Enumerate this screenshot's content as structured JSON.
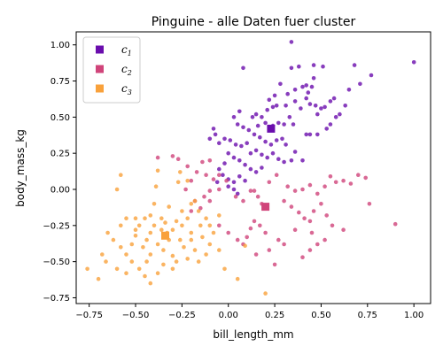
{
  "chart_data": {
    "type": "scatter",
    "title": "Pinguine - alle Daten fuer cluster",
    "xlabel": "bill_length_mm",
    "ylabel": "body_mass_kg",
    "xlim": [
      -0.82,
      1.09
    ],
    "ylim": [
      -0.79,
      1.09
    ],
    "xticks": [
      -0.75,
      -0.5,
      -0.25,
      0.0,
      0.25,
      0.5,
      0.75,
      1.0
    ],
    "xtick_labels": [
      "−0.75",
      "−0.50",
      "−0.25",
      "0.00",
      "0.25",
      "0.50",
      "0.75",
      "1.00"
    ],
    "yticks": [
      -0.75,
      -0.5,
      -0.25,
      0.0,
      0.25,
      0.5,
      0.75,
      1.0
    ],
    "ytick_labels": [
      "−0.75",
      "−0.50",
      "−0.25",
      "0.00",
      "0.25",
      "0.50",
      "0.75",
      "1.00"
    ],
    "grid": false,
    "legend_position": "top-left",
    "series": [
      {
        "name": "c",
        "subscript": "1",
        "color": "#6a0dad",
        "centroid": [
          0.23,
          0.42
        ],
        "points": [
          [
            0.08,
            0.84
          ],
          [
            0.34,
            1.02
          ],
          [
            0.38,
            0.85
          ],
          [
            0.34,
            0.84
          ],
          [
            0.46,
            0.86
          ],
          [
            0.51,
            0.85
          ],
          [
            0.68,
            0.86
          ],
          [
            1.0,
            0.88
          ],
          [
            0.71,
            0.73
          ],
          [
            0.77,
            0.79
          ],
          [
            0.65,
            0.69
          ],
          [
            0.4,
            0.71
          ],
          [
            0.42,
            0.72
          ],
          [
            0.45,
            0.71
          ],
          [
            0.46,
            0.77
          ],
          [
            0.43,
            0.67
          ],
          [
            0.36,
            0.69
          ],
          [
            0.28,
            0.73
          ],
          [
            0.32,
            0.66
          ],
          [
            0.31,
            0.58
          ],
          [
            0.36,
            0.61
          ],
          [
            0.39,
            0.56
          ],
          [
            0.42,
            0.63
          ],
          [
            0.44,
            0.59
          ],
          [
            0.47,
            0.58
          ],
          [
            0.48,
            0.52
          ],
          [
            0.5,
            0.56
          ],
          [
            0.52,
            0.57
          ],
          [
            0.55,
            0.61
          ],
          [
            0.57,
            0.63
          ],
          [
            0.26,
            0.58
          ],
          [
            0.24,
            0.57
          ],
          [
            0.21,
            0.55
          ],
          [
            0.18,
            0.5
          ],
          [
            0.15,
            0.52
          ],
          [
            0.13,
            0.5
          ],
          [
            0.33,
            0.5
          ],
          [
            0.35,
            0.45
          ],
          [
            0.3,
            0.45
          ],
          [
            0.27,
            0.46
          ],
          [
            0.24,
            0.44
          ],
          [
            0.2,
            0.46
          ],
          [
            0.06,
            0.54
          ],
          [
            0.03,
            0.5
          ],
          [
            0.05,
            0.45
          ],
          [
            0.08,
            0.43
          ],
          [
            0.11,
            0.41
          ],
          [
            0.14,
            0.38
          ],
          [
            0.17,
            0.36
          ],
          [
            0.2,
            0.33
          ],
          [
            0.23,
            0.31
          ],
          [
            0.26,
            0.34
          ],
          [
            0.29,
            0.35
          ],
          [
            0.31,
            0.31
          ],
          [
            0.1,
            0.32
          ],
          [
            0.07,
            0.3
          ],
          [
            0.04,
            0.31
          ],
          [
            0.01,
            0.34
          ],
          [
            -0.02,
            0.35
          ],
          [
            -0.05,
            0.32
          ],
          [
            -0.07,
            0.38
          ],
          [
            -0.1,
            0.35
          ],
          [
            -0.08,
            0.42
          ],
          [
            0.12,
            0.25
          ],
          [
            0.15,
            0.27
          ],
          [
            0.18,
            0.24
          ],
          [
            0.21,
            0.22
          ],
          [
            0.24,
            0.25
          ],
          [
            0.27,
            0.21
          ],
          [
            0.3,
            0.19
          ],
          [
            0.34,
            0.2
          ],
          [
            0.4,
            0.2
          ],
          [
            0.42,
            0.38
          ],
          [
            0.44,
            0.38
          ],
          [
            0.36,
            0.26
          ],
          [
            0.0,
            0.25
          ],
          [
            0.03,
            0.22
          ],
          [
            0.06,
            0.2
          ],
          [
            0.09,
            0.17
          ],
          [
            0.12,
            0.14
          ],
          [
            0.15,
            0.12
          ],
          [
            0.18,
            0.15
          ],
          [
            -0.02,
            0.18
          ],
          [
            -0.05,
            0.14
          ],
          [
            -0.03,
            0.1
          ],
          [
            0.0,
            0.07
          ],
          [
            0.03,
            0.05
          ],
          [
            0.06,
            0.09
          ],
          [
            0.09,
            0.06
          ],
          [
            -0.06,
            0.05
          ],
          [
            0.0,
            0.02
          ],
          [
            0.03,
            0.0
          ],
          [
            0.05,
            -0.03
          ],
          [
            0.48,
            0.38
          ],
          [
            0.53,
            0.42
          ],
          [
            0.55,
            0.45
          ],
          [
            0.58,
            0.5
          ],
          [
            0.6,
            0.52
          ],
          [
            0.63,
            0.58
          ],
          [
            0.22,
            0.62
          ],
          [
            0.25,
            0.65
          ],
          [
            0.16,
            0.44
          ]
        ]
      },
      {
        "name": "c",
        "subscript": "2",
        "color": "#d0447a",
        "centroid": [
          0.2,
          -0.12
        ],
        "points": [
          [
            -0.38,
            0.22
          ],
          [
            -0.3,
            0.23
          ],
          [
            -0.27,
            0.21
          ],
          [
            -0.22,
            0.16
          ],
          [
            -0.14,
            0.19
          ],
          [
            -0.1,
            0.2
          ],
          [
            -0.17,
            0.12
          ],
          [
            -0.12,
            0.1
          ],
          [
            -0.08,
            0.07
          ],
          [
            -0.05,
            0.1
          ],
          [
            -0.01,
            0.06
          ],
          [
            -0.05,
            0.0
          ],
          [
            -0.2,
            0.06
          ],
          [
            -0.23,
            0.0
          ],
          [
            -0.1,
            -0.01
          ],
          [
            -0.13,
            -0.05
          ],
          [
            -0.18,
            -0.08
          ],
          [
            -0.1,
            -0.08
          ],
          [
            -0.15,
            -0.13
          ],
          [
            -0.2,
            -0.15
          ],
          [
            0.04,
            -0.05
          ],
          [
            0.08,
            -0.08
          ],
          [
            0.12,
            -0.01
          ],
          [
            0.14,
            -0.01
          ],
          [
            0.16,
            -0.05
          ],
          [
            0.18,
            -0.1
          ],
          [
            0.22,
            0.05
          ],
          [
            0.26,
            0.1
          ],
          [
            0.32,
            0.02
          ],
          [
            0.36,
            -0.01
          ],
          [
            0.4,
            0.0
          ],
          [
            0.44,
            0.03
          ],
          [
            0.48,
            -0.03
          ],
          [
            0.52,
            0.02
          ],
          [
            0.55,
            0.09
          ],
          [
            0.58,
            0.05
          ],
          [
            0.62,
            0.06
          ],
          [
            0.66,
            0.04
          ],
          [
            0.7,
            0.1
          ],
          [
            0.74,
            0.08
          ],
          [
            0.3,
            -0.08
          ],
          [
            0.34,
            -0.12
          ],
          [
            0.38,
            -0.16
          ],
          [
            0.41,
            -0.2
          ],
          [
            0.44,
            -0.22
          ],
          [
            0.46,
            -0.15
          ],
          [
            0.5,
            -0.1
          ],
          [
            0.53,
            -0.18
          ],
          [
            0.56,
            -0.25
          ],
          [
            0.52,
            -0.35
          ],
          [
            0.48,
            -0.38
          ],
          [
            0.44,
            -0.42
          ],
          [
            0.4,
            -0.47
          ],
          [
            0.3,
            -0.38
          ],
          [
            0.27,
            -0.35
          ],
          [
            0.14,
            -0.22
          ],
          [
            0.12,
            -0.27
          ],
          [
            0.1,
            -0.33
          ],
          [
            0.08,
            -0.38
          ],
          [
            0.15,
            -0.45
          ],
          [
            0.22,
            -0.42
          ],
          [
            0.2,
            -0.3
          ],
          [
            0.05,
            -0.35
          ],
          [
            0.0,
            -0.3
          ],
          [
            -0.05,
            -0.25
          ],
          [
            0.9,
            -0.24
          ],
          [
            0.76,
            -0.1
          ],
          [
            0.62,
            -0.28
          ],
          [
            0.45,
            -0.3
          ],
          [
            0.25,
            -0.52
          ],
          [
            0.36,
            -0.28
          ],
          [
            0.17,
            -0.25
          ]
        ]
      },
      {
        "name": "c",
        "subscript": "3",
        "color": "#f9a13b",
        "centroid": [
          -0.34,
          -0.32
        ],
        "points": [
          [
            -0.58,
            0.1
          ],
          [
            -0.38,
            0.13
          ],
          [
            -0.26,
            0.12
          ],
          [
            -0.27,
            0.05
          ],
          [
            -0.39,
            0.02
          ],
          [
            -0.22,
            0.06
          ],
          [
            -0.6,
            0.0
          ],
          [
            -0.55,
            -0.2
          ],
          [
            -0.5,
            -0.2
          ],
          [
            -0.48,
            -0.25
          ],
          [
            -0.45,
            -0.2
          ],
          [
            -0.42,
            -0.18
          ],
          [
            -0.4,
            -0.25
          ],
          [
            -0.36,
            -0.2
          ],
          [
            -0.34,
            -0.23
          ],
          [
            -0.3,
            -0.28
          ],
          [
            -0.28,
            -0.22
          ],
          [
            -0.25,
            -0.15
          ],
          [
            -0.22,
            -0.2
          ],
          [
            -0.2,
            -0.1
          ],
          [
            -0.18,
            -0.08
          ],
          [
            -0.25,
            -0.25
          ],
          [
            -0.2,
            -0.3
          ],
          [
            -0.15,
            -0.25
          ],
          [
            -0.12,
            -0.2
          ],
          [
            -0.1,
            -0.25
          ],
          [
            -0.05,
            -0.18
          ],
          [
            -0.65,
            -0.3
          ],
          [
            -0.62,
            -0.35
          ],
          [
            -0.58,
            -0.4
          ],
          [
            -0.55,
            -0.45
          ],
          [
            -0.52,
            -0.38
          ],
          [
            -0.5,
            -0.32
          ],
          [
            -0.46,
            -0.4
          ],
          [
            -0.44,
            -0.5
          ],
          [
            -0.42,
            -0.45
          ],
          [
            -0.38,
            -0.38
          ],
          [
            -0.35,
            -0.42
          ],
          [
            -0.32,
            -0.35
          ],
          [
            -0.3,
            -0.46
          ],
          [
            -0.28,
            -0.5
          ],
          [
            -0.24,
            -0.4
          ],
          [
            -0.22,
            -0.48
          ],
          [
            -0.2,
            -0.35
          ],
          [
            -0.18,
            -0.42
          ],
          [
            -0.16,
            -0.5
          ],
          [
            -0.12,
            -0.45
          ],
          [
            -0.1,
            -0.38
          ],
          [
            -0.08,
            -0.3
          ],
          [
            -0.05,
            -0.42
          ],
          [
            -0.48,
            -0.55
          ],
          [
            -0.45,
            -0.6
          ],
          [
            -0.42,
            -0.65
          ],
          [
            -0.38,
            -0.58
          ],
          [
            -0.35,
            -0.52
          ],
          [
            -0.3,
            -0.55
          ],
          [
            -0.6,
            -0.55
          ],
          [
            -0.55,
            -0.58
          ],
          [
            -0.68,
            -0.45
          ],
          [
            -0.7,
            -0.62
          ],
          [
            -0.76,
            -0.55
          ],
          [
            -0.66,
            -0.5
          ],
          [
            -0.52,
            -0.5
          ],
          [
            -0.36,
            -0.28
          ],
          [
            -0.33,
            -0.3
          ],
          [
            -0.42,
            -0.3
          ],
          [
            -0.5,
            -0.28
          ],
          [
            -0.26,
            -0.35
          ],
          [
            -0.14,
            -0.33
          ],
          [
            -0.4,
            -0.1
          ],
          [
            -0.32,
            -0.12
          ],
          [
            -0.16,
            -0.15
          ],
          [
            -0.44,
            -0.35
          ],
          [
            -0.58,
            -0.25
          ],
          [
            0.05,
            -0.62
          ],
          [
            0.2,
            -0.72
          ],
          [
            0.09,
            -0.39
          ],
          [
            -0.02,
            -0.55
          ]
        ]
      }
    ]
  }
}
